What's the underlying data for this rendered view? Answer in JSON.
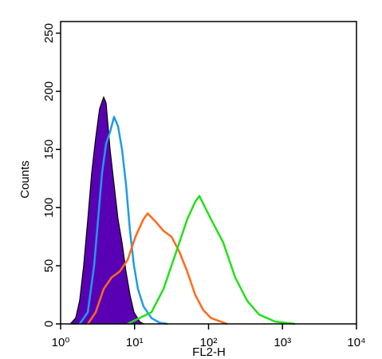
{
  "chart_data": {
    "type": "histogram-overlay",
    "x_label": "FL2-H",
    "y_label": "Counts",
    "xscale": "log",
    "xlim": [
      1,
      10000
    ],
    "xticks": [
      {
        "value": 1,
        "label": "10⁰"
      },
      {
        "value": 10,
        "label": "10¹"
      },
      {
        "value": 100,
        "label": "10²"
      },
      {
        "value": 1000,
        "label": "10³"
      },
      {
        "value": 10000,
        "label": "10⁴"
      }
    ],
    "ylim": [
      0,
      260
    ],
    "yticks": [
      0,
      50,
      100,
      150,
      200,
      250
    ],
    "series": [
      {
        "color": "#5a00b4",
        "fill": true,
        "x": [
          1.35,
          1.6,
          1.81,
          2.05,
          2.33,
          2.63,
          2.98,
          3.37,
          3.82,
          4.12,
          4.66,
          5.28,
          5.97,
          6.76,
          7.66,
          8.67,
          9.82,
          11.7,
          13.2
        ],
        "values": [
          0,
          5,
          20,
          50,
          90,
          130,
          160,
          185,
          195,
          190,
          150,
          120,
          90,
          70,
          45,
          25,
          10,
          2,
          0
        ]
      },
      {
        "color": "#1e9bea",
        "fill": false,
        "x": [
          1.81,
          2.33,
          2.84,
          3.21,
          3.64,
          4.12,
          4.66,
          5.28,
          5.97,
          6.76,
          7.66,
          8.67,
          9.82,
          11.1,
          13.2,
          16.9,
          21.8,
          27.8
        ],
        "values": [
          0,
          10,
          50,
          90,
          130,
          155,
          165,
          178,
          170,
          150,
          120,
          80,
          50,
          30,
          15,
          5,
          1,
          0
        ]
      },
      {
        "color": "#ff6a1a",
        "fill": false,
        "x": [
          2.33,
          2.98,
          3.82,
          4.9,
          6.28,
          8.04,
          10.3,
          13.2,
          15.0,
          19.2,
          24.6,
          31.5,
          40.3,
          51.6,
          66.1,
          84.6,
          108,
          178
        ],
        "values": [
          0,
          10,
          30,
          40,
          45,
          55,
          75,
          90,
          95,
          88,
          80,
          75,
          62,
          45,
          25,
          12,
          5,
          0
        ]
      },
      {
        "color": "#22e01a",
        "fill": false,
        "x": [
          8.04,
          16.9,
          24.6,
          35.7,
          51.6,
          66.1,
          75.2,
          108,
          158,
          229,
          332,
          483,
          794,
          1480
        ],
        "values": [
          0,
          10,
          30,
          60,
          90,
          105,
          110,
          90,
          70,
          40,
          20,
          8,
          2,
          0
        ]
      }
    ]
  }
}
